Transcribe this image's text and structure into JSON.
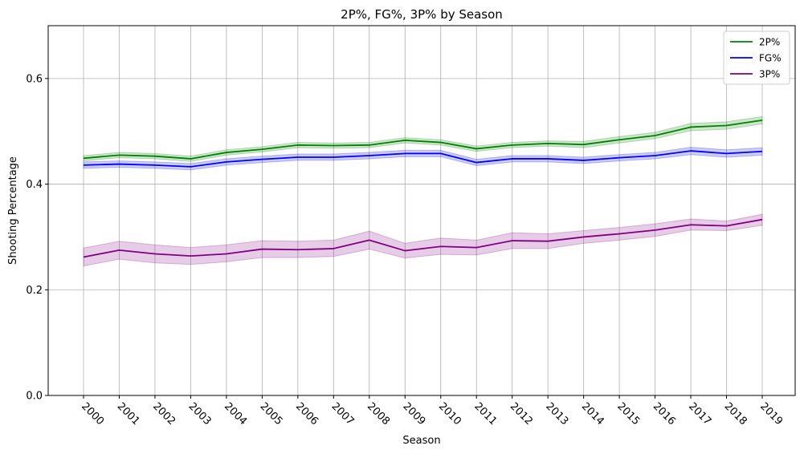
{
  "chart_data": {
    "type": "line",
    "title": "2P%, FG%, 3P% by Season",
    "xlabel": "Season",
    "ylabel": "Shooting Percentage",
    "ylim": [
      0,
      0.7
    ],
    "yticks": [
      0.0,
      0.2,
      0.4,
      0.6
    ],
    "ytick_labels": [
      "0.0",
      "0.2",
      "0.4",
      "0.6"
    ],
    "grid": true,
    "legend_position": "top-right",
    "categories": [
      "2000",
      "2001",
      "2002",
      "2003",
      "2004",
      "2005",
      "2006",
      "2007",
      "2008",
      "2009",
      "2010",
      "2011",
      "2012",
      "2013",
      "2014",
      "2015",
      "2016",
      "2017",
      "2018",
      "2019"
    ],
    "series": [
      {
        "name": "2P%",
        "color": "#008000",
        "values": [
          0.449,
          0.455,
          0.453,
          0.448,
          0.46,
          0.466,
          0.474,
          0.473,
          0.474,
          0.483,
          0.479,
          0.467,
          0.474,
          0.477,
          0.475,
          0.484,
          0.492,
          0.508,
          0.511,
          0.521
        ],
        "lower": [
          0.444,
          0.45,
          0.448,
          0.443,
          0.455,
          0.461,
          0.469,
          0.468,
          0.469,
          0.478,
          0.474,
          0.462,
          0.469,
          0.472,
          0.469,
          0.478,
          0.486,
          0.501,
          0.504,
          0.514
        ],
        "upper": [
          0.454,
          0.46,
          0.458,
          0.453,
          0.465,
          0.471,
          0.479,
          0.478,
          0.479,
          0.488,
          0.484,
          0.472,
          0.479,
          0.482,
          0.481,
          0.49,
          0.498,
          0.515,
          0.518,
          0.528
        ]
      },
      {
        "name": "FG%",
        "color": "#0000ff",
        "values": [
          0.436,
          0.438,
          0.436,
          0.433,
          0.442,
          0.447,
          0.451,
          0.451,
          0.454,
          0.458,
          0.458,
          0.441,
          0.448,
          0.448,
          0.445,
          0.45,
          0.454,
          0.463,
          0.458,
          0.462
        ],
        "lower": [
          0.43,
          0.432,
          0.43,
          0.427,
          0.436,
          0.441,
          0.445,
          0.445,
          0.448,
          0.452,
          0.452,
          0.435,
          0.442,
          0.442,
          0.439,
          0.444,
          0.448,
          0.456,
          0.451,
          0.455
        ],
        "upper": [
          0.442,
          0.444,
          0.442,
          0.439,
          0.448,
          0.453,
          0.457,
          0.457,
          0.46,
          0.464,
          0.464,
          0.447,
          0.454,
          0.454,
          0.451,
          0.456,
          0.46,
          0.47,
          0.465,
          0.469
        ]
      },
      {
        "name": "3P%",
        "color": "#800080",
        "values": [
          0.262,
          0.275,
          0.268,
          0.264,
          0.268,
          0.277,
          0.276,
          0.278,
          0.294,
          0.274,
          0.282,
          0.28,
          0.293,
          0.292,
          0.3,
          0.306,
          0.313,
          0.323,
          0.321,
          0.333
        ],
        "lower": [
          0.245,
          0.258,
          0.251,
          0.248,
          0.253,
          0.261,
          0.261,
          0.263,
          0.277,
          0.26,
          0.267,
          0.266,
          0.278,
          0.278,
          0.288,
          0.294,
          0.301,
          0.313,
          0.312,
          0.322
        ],
        "upper": [
          0.279,
          0.292,
          0.285,
          0.28,
          0.285,
          0.293,
          0.292,
          0.294,
          0.311,
          0.288,
          0.298,
          0.294,
          0.308,
          0.306,
          0.312,
          0.318,
          0.325,
          0.334,
          0.33,
          0.343
        ]
      }
    ]
  }
}
